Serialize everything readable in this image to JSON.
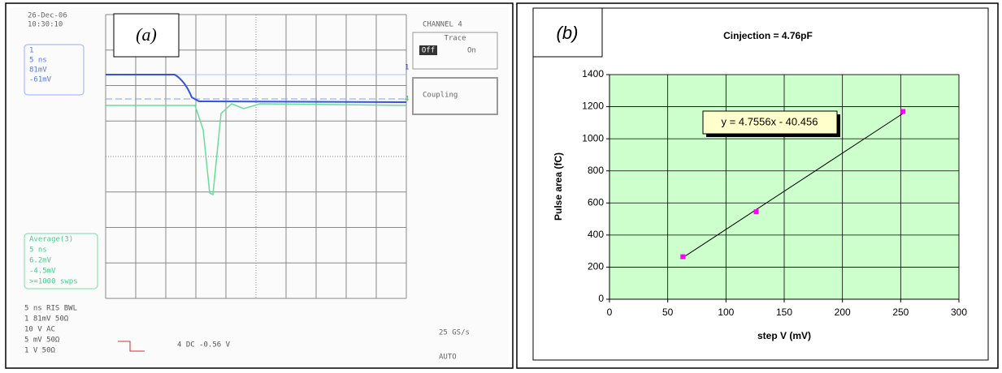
{
  "panel_a": {
    "label": "(a)",
    "date": "26-Dec-06",
    "time": "10:30:10",
    "channel": "CHANNEL 4",
    "trace_title": "Trace",
    "trace_off": "Off",
    "trace_on": "On",
    "coupling": "Coupling",
    "ch1_box": [
      "1",
      "5 ns",
      "81mV",
      "-61mV"
    ],
    "avg_box": [
      "Average(3)",
      "5 ns",
      "6.2mV",
      "-4.5mV",
      ">=1000 swps"
    ],
    "bottom_left": [
      "5 ns RIS BWL",
      "1  81mV    50Ω",
      "  10  V   AC",
      "  5  mV   50Ω",
      "  1  V    50Ω"
    ],
    "trigger": "4  DC -0.56 V",
    "rate": "25 GS/s",
    "mode": "AUTO",
    "marker_1": "1",
    "marker_4": "4"
  },
  "chart_data": {
    "type": "scatter",
    "label": "(b)",
    "title": "Cinjection = 4.76pF",
    "x_label": "step V (mV)",
    "y_label": "Pulse area (fC)",
    "x": [
      63,
      126,
      252
    ],
    "values": [
      265,
      545,
      1170
    ],
    "color": "#ff00ff",
    "xlim": [
      0,
      300
    ],
    "xticks": [
      0,
      50,
      100,
      150,
      200,
      250,
      300
    ],
    "ylim": [
      0,
      1400
    ],
    "yticks": [
      0,
      200,
      400,
      600,
      800,
      1000,
      1200,
      1400
    ],
    "grid": true,
    "plot_background": "#ccffcc",
    "trendline": {
      "slope": 4.7556,
      "intercept": -40.456,
      "label": "y = 4.7556x - 40.456"
    }
  }
}
